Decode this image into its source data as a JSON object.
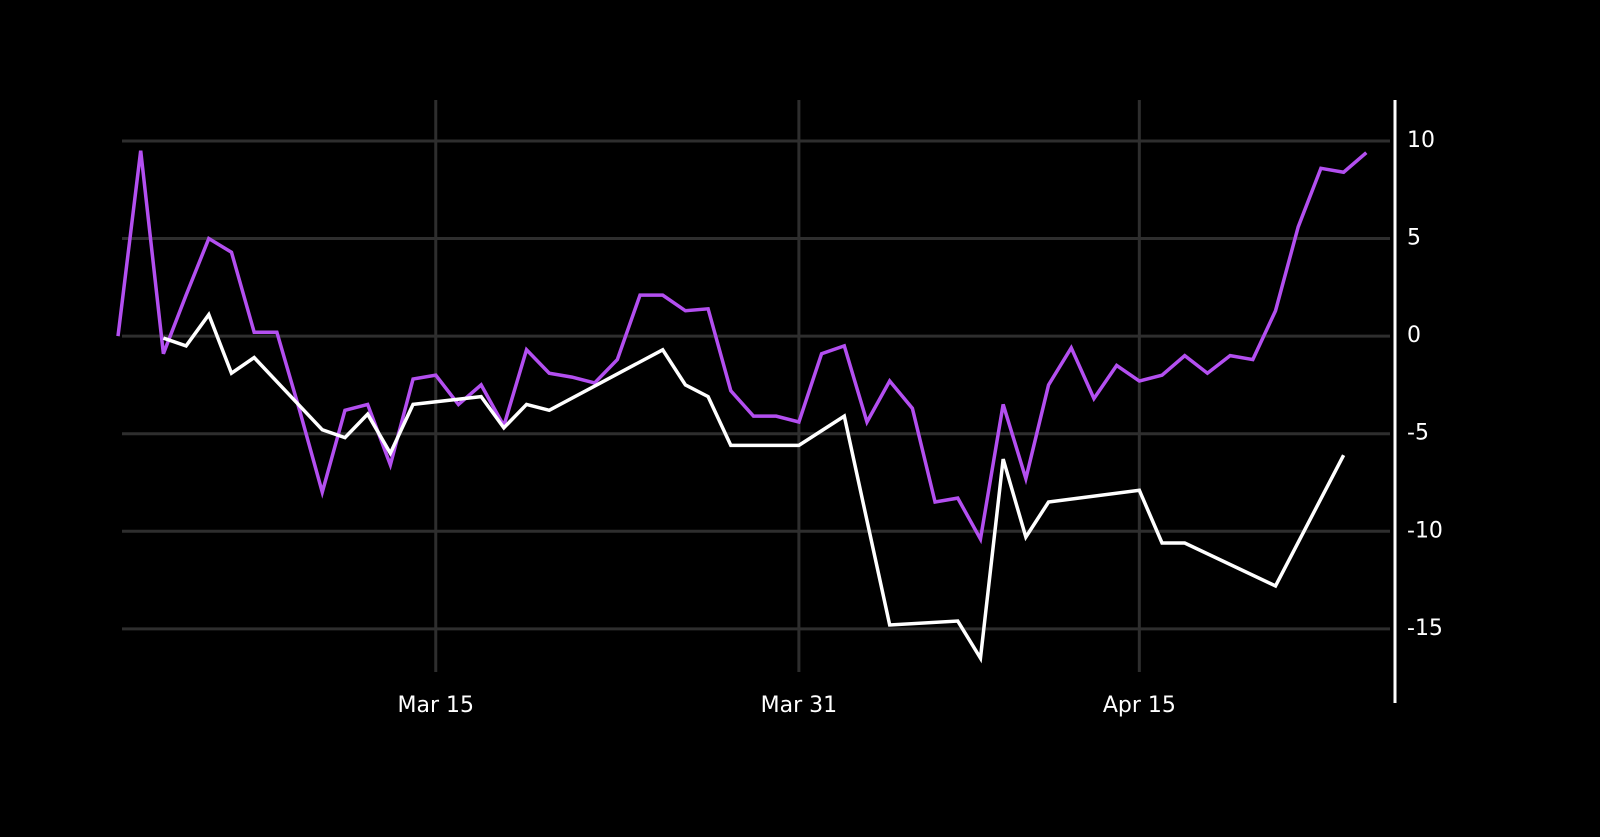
{
  "chart_data": {
    "type": "line",
    "series": [
      {
        "color": "#b34ff0",
        "x": [
          "03-01",
          "03-02",
          "03-03",
          "03-04",
          "03-05",
          "03-06",
          "03-07",
          "03-08",
          "03-09",
          "03-10",
          "03-11",
          "03-12",
          "03-13",
          "03-14",
          "03-15",
          "03-16",
          "03-17",
          "03-18",
          "03-19",
          "03-20",
          "03-21",
          "03-22",
          "03-23",
          "03-24",
          "03-25",
          "03-26",
          "03-27",
          "03-28",
          "03-29",
          "03-30",
          "03-31",
          "04-01",
          "04-02",
          "04-03",
          "04-04",
          "04-05",
          "04-06",
          "04-07",
          "04-08",
          "04-09",
          "04-10",
          "04-11",
          "04-12",
          "04-13",
          "04-14",
          "04-15",
          "04-16",
          "04-17",
          "04-18",
          "04-19",
          "04-20",
          "04-21",
          "04-22",
          "04-23",
          "04-24",
          "04-25"
        ],
        "values": [
          0,
          9.5,
          -0.9,
          2.1,
          5.0,
          4.3,
          0.2,
          0.2,
          -3.8,
          -8.0,
          -3.8,
          -3.5,
          -6.6,
          -2.2,
          -2.0,
          -3.5,
          -2.5,
          -4.6,
          -0.7,
          -1.9,
          -2.1,
          -2.4,
          -1.2,
          2.1,
          2.1,
          1.3,
          1.4,
          -2.8,
          -4.1,
          -4.1,
          -4.4,
          -0.9,
          -0.5,
          -4.4,
          -2.3,
          -3.7,
          -8.5,
          -8.3,
          -10.4,
          -3.5,
          -7.3,
          -2.5,
          -0.6,
          -3.2,
          -1.5,
          -2.3,
          -2.0,
          -1.0,
          -1.9,
          -1.0,
          -1.2,
          1.3,
          5.6,
          8.6,
          8.4,
          9.4
        ]
      },
      {
        "color": "#ffffff",
        "x": [
          "03-03",
          "03-04",
          "03-05",
          "03-06",
          "03-07",
          "03-10",
          "03-11",
          "03-12",
          "03-13",
          "03-14",
          "03-17",
          "03-18",
          "03-19",
          "03-20",
          "03-25",
          "03-26",
          "03-27",
          "03-28",
          "03-31",
          "04-02",
          "04-04",
          "04-07",
          "04-08",
          "04-09",
          "04-10",
          "04-11",
          "04-15",
          "04-16",
          "04-17",
          "04-21",
          "04-24"
        ],
        "values": [
          -0.1,
          -0.5,
          1.1,
          -1.9,
          -1.1,
          -4.8,
          -5.2,
          -4.0,
          -6.0,
          -3.5,
          -3.1,
          -4.7,
          -3.5,
          -3.8,
          -0.7,
          -2.5,
          -3.1,
          -5.6,
          -5.6,
          -4.1,
          -14.8,
          -14.6,
          -16.5,
          -6.3,
          -10.3,
          -8.5,
          -7.9,
          -10.6,
          -10.6,
          -12.8,
          -6.1
        ]
      }
    ],
    "xlim": [
      "03-01",
      "04-26"
    ],
    "xticks": [
      {
        "value": "03-15",
        "label": "Mar 15"
      },
      {
        "value": "03-31",
        "label": "Mar 31"
      },
      {
        "value": "04-15",
        "label": "Apr 15"
      }
    ],
    "ylim": [
      -18.8,
      12.1
    ],
    "yticks": [
      10,
      5,
      0,
      -5,
      -10,
      -15
    ],
    "grid": true
  }
}
